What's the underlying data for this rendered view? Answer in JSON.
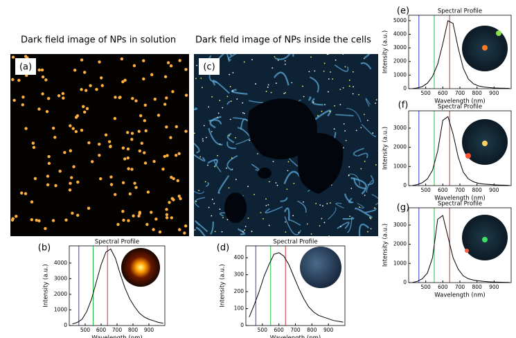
{
  "captions": [
    "Dark field image of NPs in solution",
    "Dark field image of NPs inside the cells"
  ],
  "image_labels": [
    "(a)",
    "(c)"
  ],
  "chart_data": [
    {
      "type": "line",
      "label": "(b)",
      "title": "Spectral Profile",
      "x_label": "Wavelength (nm)",
      "y_label": "Intensity (a.u.)",
      "x": [
        420,
        450,
        480,
        510,
        540,
        570,
        600,
        630,
        660,
        690,
        720,
        750,
        780,
        810,
        840,
        870,
        900,
        930,
        960,
        990
      ],
      "values": [
        100,
        200,
        400,
        900,
        1700,
        2800,
        3900,
        4700,
        4900,
        4300,
        3300,
        2400,
        1700,
        1200,
        800,
        550,
        400,
        300,
        200,
        150
      ],
      "color": "#000000",
      "xlim": [
        400,
        1000
      ],
      "xticks": [
        500,
        600,
        700,
        800,
        900
      ],
      "ylim": [
        0,
        5100
      ],
      "yticks": [
        0,
        1000,
        2000,
        3000,
        4000
      ],
      "vlines": [
        {
          "value": 460,
          "color": "#3a3ad0"
        },
        {
          "value": 550,
          "color": "#20c040"
        },
        {
          "value": 640,
          "color": "#d03030"
        }
      ]
    },
    {
      "type": "line",
      "label": "(d)",
      "title": "Spectral Profile",
      "x_label": "Wavelength (nm)",
      "y_label": "Intensity (a.u.)",
      "x": [
        420,
        450,
        480,
        510,
        540,
        570,
        600,
        630,
        660,
        690,
        720,
        750,
        780,
        810,
        840,
        870,
        900,
        930,
        960,
        990
      ],
      "values": [
        50,
        120,
        200,
        290,
        360,
        420,
        430,
        410,
        360,
        290,
        220,
        160,
        110,
        80,
        60,
        50,
        40,
        30,
        25,
        20
      ],
      "color": "#000000",
      "xlim": [
        400,
        1000
      ],
      "xticks": [
        500,
        600,
        700,
        800,
        900
      ],
      "ylim": [
        0,
        470
      ],
      "yticks": [
        0,
        100,
        200,
        300,
        400
      ],
      "vlines": [
        {
          "value": 460,
          "color": "#3a3ad0"
        },
        {
          "value": 550,
          "color": "#20c040"
        },
        {
          "value": 640,
          "color": "#d03030"
        }
      ]
    },
    {
      "type": "line",
      "label": "(e)",
      "title": "Spectral Profile",
      "x_label": "Wavelength (nm)",
      "y_label": "Intensity (a.u.)",
      "x": [
        420,
        450,
        480,
        510,
        540,
        570,
        600,
        630,
        660,
        690,
        720,
        750,
        780,
        810,
        840,
        870,
        900,
        930,
        960,
        990
      ],
      "values": [
        0,
        50,
        150,
        400,
        900,
        1800,
        3300,
        5000,
        4800,
        3000,
        1500,
        700,
        350,
        200,
        120,
        80,
        50,
        40,
        30,
        20
      ],
      "color": "#000000",
      "xlim": [
        400,
        1000
      ],
      "xticks": [
        500,
        600,
        700,
        800,
        900
      ],
      "ylim": [
        0,
        5400
      ],
      "yticks": [
        0,
        1000,
        2000,
        3000,
        4000,
        5000
      ],
      "vlines": [
        {
          "value": 460,
          "color": "#3a3ad0"
        },
        {
          "value": 550,
          "color": "#20c040"
        },
        {
          "value": 640,
          "color": "#d03030"
        }
      ]
    },
    {
      "type": "line",
      "label": "(f)",
      "title": "Spectral Profile",
      "x_label": "Wavelength (nm)",
      "y_label": "Intensity (a.u.)",
      "x": [
        420,
        450,
        480,
        510,
        540,
        570,
        600,
        630,
        660,
        690,
        720,
        750,
        780,
        810,
        840,
        870,
        900,
        930,
        960,
        990
      ],
      "values": [
        0,
        50,
        150,
        350,
        800,
        1800,
        3400,
        3600,
        2700,
        1500,
        700,
        350,
        200,
        120,
        80,
        60,
        40,
        30,
        20,
        10
      ],
      "color": "#000000",
      "xlim": [
        400,
        1000
      ],
      "xticks": [
        500,
        600,
        700,
        800,
        900
      ],
      "ylim": [
        0,
        3900
      ],
      "yticks": [
        0,
        1000,
        2000,
        3000
      ],
      "vlines": [
        {
          "value": 460,
          "color": "#3a3ad0"
        },
        {
          "value": 550,
          "color": "#20c040"
        },
        {
          "value": 640,
          "color": "#d03030"
        }
      ]
    },
    {
      "type": "line",
      "label": "(g)",
      "title": "Spectral Profile",
      "x_label": "Wavelength (nm)",
      "y_label": "Intensity (a.u.)",
      "x": [
        420,
        450,
        480,
        510,
        540,
        570,
        600,
        630,
        660,
        690,
        720,
        750,
        780,
        810,
        840,
        870,
        900,
        930,
        960,
        990
      ],
      "values": [
        0,
        60,
        200,
        500,
        1300,
        3300,
        3500,
        2400,
        1300,
        700,
        350,
        200,
        130,
        90,
        60,
        40,
        30,
        20,
        15,
        10
      ],
      "color": "#000000",
      "xlim": [
        400,
        1000
      ],
      "xticks": [
        500,
        600,
        700,
        800,
        900
      ],
      "ylim": [
        0,
        3900
      ],
      "yticks": [
        0,
        1000,
        2000,
        3000
      ],
      "vlines": [
        {
          "value": 460,
          "color": "#3a3ad0"
        },
        {
          "value": 550,
          "color": "#20c040"
        },
        {
          "value": 640,
          "color": "#d03030"
        }
      ]
    }
  ]
}
